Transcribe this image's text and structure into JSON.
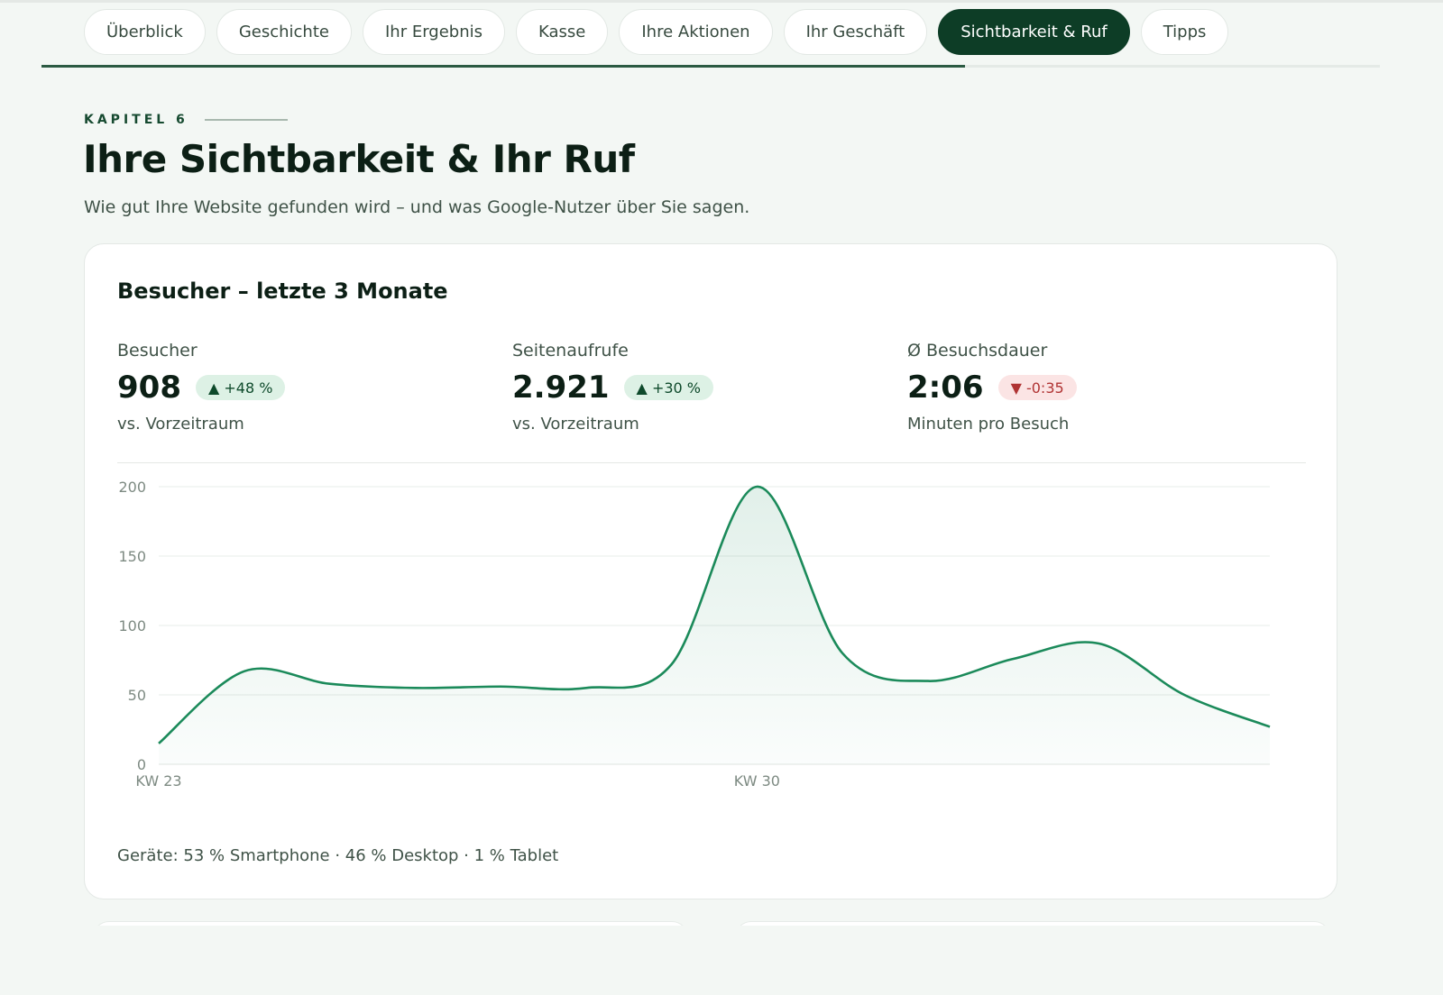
{
  "nav": {
    "tabs": [
      {
        "label": "Überblick",
        "active": false
      },
      {
        "label": "Geschichte",
        "active": false
      },
      {
        "label": "Ihr Ergebnis",
        "active": false
      },
      {
        "label": "Kasse",
        "active": false
      },
      {
        "label": "Ihre Aktionen",
        "active": false
      },
      {
        "label": "Ihr Geschäft",
        "active": false
      },
      {
        "label": "Sichtbarkeit & Ruf",
        "active": true
      },
      {
        "label": "Tipps",
        "active": false
      }
    ],
    "progress": 0.69
  },
  "header": {
    "kicker": "KAPITEL 6",
    "title": "Ihre Sichtbarkeit & Ihr Ruf",
    "subtitle": "Wie gut Ihre Website gefunden wird – und was Google-Nutzer über Sie sagen."
  },
  "card": {
    "title": "Besucher – letzte 3 Monate",
    "kpis": [
      {
        "label": "Besucher",
        "value": "908",
        "delta": "▲ +48 %",
        "trend": "up",
        "sub": "vs. Vorzeitraum"
      },
      {
        "label": "Seitenaufrufe",
        "value": "2.921",
        "delta": "▲ +30 %",
        "trend": "up",
        "sub": "vs. Vorzeitraum"
      },
      {
        "label": "Ø Besuchsdauer",
        "value": "2:06",
        "delta": "▼ -0:35",
        "trend": "down",
        "sub": "Minuten pro Besuch"
      }
    ],
    "footnote": "Geräte: 53 % Smartphone · 46 % Desktop · 1 % Tablet"
  },
  "chart_data": {
    "type": "area",
    "x": [
      23,
      24,
      25,
      26,
      27,
      28,
      29,
      30,
      31,
      32,
      33,
      34,
      35,
      36
    ],
    "x_tick_labels": [
      {
        "x": 23,
        "label": "KW 23"
      },
      {
        "x": 30,
        "label": "KW 30"
      }
    ],
    "values": [
      15,
      67,
      58,
      55,
      56,
      55,
      72,
      200,
      80,
      60,
      76,
      87,
      50,
      27
    ],
    "ylim": [
      0,
      200
    ],
    "yticks": [
      0,
      50,
      100,
      150,
      200
    ],
    "grid": true,
    "colors": {
      "line": "#1b8a5a",
      "fill": "#1b8a5a"
    }
  }
}
